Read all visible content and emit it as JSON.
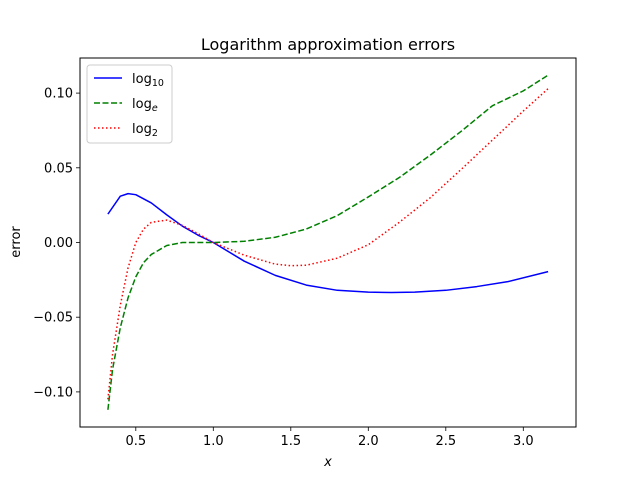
{
  "chart_data": {
    "type": "line",
    "title": "Logarithm approximation errors",
    "xlabel": "x",
    "ylabel": "error",
    "xlim": [
      0.14,
      3.34
    ],
    "ylim": [
      -0.1235,
      0.1235
    ],
    "x_ticks": [
      0.5,
      1.0,
      1.5,
      2.0,
      2.5,
      3.0
    ],
    "x_tick_labels": [
      "0.5",
      "1.0",
      "1.5",
      "2.0",
      "2.5",
      "3.0"
    ],
    "y_ticks": [
      -0.1,
      -0.05,
      0.0,
      0.05,
      0.1
    ],
    "y_tick_labels": [
      "−0.10",
      "−0.05",
      "0.00",
      "0.05",
      "0.10"
    ],
    "grid": false,
    "legend_position": "top-left",
    "series": [
      {
        "name_base": "log",
        "name_sub": "10",
        "sub_italic": false,
        "color": "#0000ff",
        "style": "solid",
        "x": [
          0.32,
          0.4,
          0.45,
          0.5,
          0.6,
          0.7,
          0.8,
          0.9,
          1.0,
          1.2,
          1.4,
          1.6,
          1.8,
          2.0,
          2.15,
          2.3,
          2.5,
          2.7,
          2.9,
          3.16
        ],
        "y": [
          0.019,
          0.031,
          0.0327,
          0.032,
          0.0265,
          0.0185,
          0.011,
          0.005,
          0.0,
          -0.0125,
          -0.022,
          -0.0285,
          -0.032,
          -0.0332,
          -0.0335,
          -0.0332,
          -0.032,
          -0.0295,
          -0.0262,
          -0.0195
        ]
      },
      {
        "name_base": "log",
        "name_sub": "e",
        "sub_italic": true,
        "color": "#008000",
        "style": "dashed",
        "x": [
          0.32,
          0.35,
          0.4,
          0.45,
          0.5,
          0.55,
          0.6,
          0.7,
          0.8,
          0.9,
          1.0,
          1.2,
          1.4,
          1.6,
          1.8,
          2.0,
          2.2,
          2.4,
          2.6,
          2.8,
          3.0,
          3.16
        ],
        "y": [
          -0.112,
          -0.085,
          -0.057,
          -0.037,
          -0.023,
          -0.0135,
          -0.008,
          -0.002,
          0.0,
          0.0,
          0.0,
          0.0008,
          0.0035,
          0.009,
          0.018,
          0.0305,
          0.0435,
          0.0585,
          0.0745,
          0.0915,
          0.1015,
          0.112
        ]
      },
      {
        "name_base": "log",
        "name_sub": "2",
        "sub_italic": false,
        "color": "#ff0000",
        "style": "dotted",
        "x": [
          0.32,
          0.35,
          0.4,
          0.45,
          0.5,
          0.55,
          0.6,
          0.7,
          0.8,
          0.9,
          1.0,
          1.2,
          1.4,
          1.5,
          1.6,
          1.8,
          2.0,
          2.2,
          2.4,
          2.6,
          2.8,
          3.0,
          3.16
        ],
        "y": [
          -0.105,
          -0.075,
          -0.042,
          -0.017,
          0.0,
          0.009,
          0.0135,
          0.015,
          0.0115,
          0.006,
          0.0,
          -0.0085,
          -0.0145,
          -0.0155,
          -0.0152,
          -0.0105,
          -0.0015,
          0.0135,
          0.03,
          0.049,
          0.0685,
          0.088,
          0.103
        ]
      }
    ]
  }
}
